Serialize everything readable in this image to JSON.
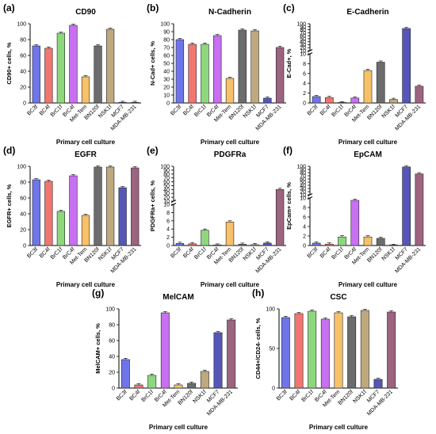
{
  "categories": [
    "BC3f",
    "BC4f",
    "BrC1f",
    "BrC4f",
    "Met-Tem",
    "BN120f",
    "NSK1f",
    "MCF7",
    "MDA-MB-231"
  ],
  "colors": [
    "#5b62e6",
    "#f0635d",
    "#7ed36b",
    "#bf5cf0",
    "#f6b955",
    "#585858",
    "#b59c6c",
    "#3f3fae",
    "#8f4f6e"
  ],
  "chart_data": [
    {
      "type": "bar",
      "panel": "(a)",
      "title": "CD90",
      "ylabel": "CD90+ cells, %",
      "xlabel": "Primary cell culture",
      "ylim": [
        0,
        100
      ],
      "yticks": [
        0,
        20,
        40,
        60,
        80,
        100
      ],
      "categories": [
        "BC3f",
        "BC4f",
        "BrC1f",
        "BrC4f",
        "Met-Tem",
        "BN120f",
        "NSK1f",
        "MCF7",
        "MDA-MB-231"
      ],
      "values": [
        72,
        69,
        88,
        98,
        33,
        72,
        93,
        0.5,
        0.5
      ]
    },
    {
      "type": "bar",
      "panel": "(b)",
      "title": "N-Cadherin",
      "ylabel": "N-Cad+ cells, %",
      "xlabel": "Primary cell culture",
      "ylim": [
        0,
        100
      ],
      "yticks": [
        0,
        10,
        20,
        30,
        40,
        50,
        60,
        70,
        80,
        90,
        100
      ],
      "categories": [
        "BC3f",
        "BC4f",
        "BrC1f",
        "BrC4f",
        "Met-Tem",
        "BN120f",
        "NSK1f",
        "MCF7",
        "MDA-MB-231"
      ],
      "values": [
        80,
        74,
        74,
        85,
        31,
        92,
        91,
        6,
        70
      ]
    },
    {
      "type": "bar",
      "panel": "(c)",
      "title": "E-Cadherin",
      "ylabel": "E-Cad+, %",
      "xlabel": "Primary cell culture",
      "broken_axis": {
        "lower": [
          0,
          10
        ],
        "upper": [
          10,
          100
        ]
      },
      "yticks_lower": [
        0,
        2,
        4,
        6,
        8,
        10
      ],
      "yticks_upper": [
        10,
        20,
        30,
        40,
        50,
        60,
        70,
        80,
        90,
        100
      ],
      "categories": [
        "BC3f",
        "BC4f",
        "BrC1f",
        "BrC4f",
        "Met-Tem",
        "BN120f",
        "NSK1f",
        "MCF7",
        "MDA-MB-231"
      ],
      "values": [
        1.3,
        1.1,
        0,
        1.0,
        6.6,
        8.3,
        0.7,
        84,
        3.4
      ]
    },
    {
      "type": "bar",
      "panel": "(d)",
      "title": "EGFR",
      "ylabel": "EGFR+ cells, %",
      "xlabel": "Primary cell culture",
      "ylim": [
        0,
        100
      ],
      "yticks": [
        0,
        20,
        40,
        60,
        80,
        100
      ],
      "categories": [
        "BC3f",
        "BC4f",
        "BrC1f",
        "BrC4f",
        "Met-Tem",
        "BN120f",
        "NSK1f",
        "MCF7",
        "MDA-MB-231"
      ],
      "values": [
        83,
        81,
        43,
        88,
        38,
        99,
        99,
        73,
        98
      ]
    },
    {
      "type": "bar",
      "panel": "(e)",
      "title": "PDGFRa",
      "ylabel": "PDGFRa+ cells, %",
      "xlabel": "Primary cell culture",
      "broken_axis": {
        "lower": [
          0,
          10
        ],
        "upper": [
          10,
          100
        ]
      },
      "yticks_lower": [
        0,
        2,
        4,
        6,
        8,
        10
      ],
      "yticks_upper": [
        10,
        20,
        30,
        40,
        50,
        60,
        70,
        80,
        90,
        100
      ],
      "categories": [
        "BC3f",
        "BC4f",
        "BrC1f",
        "BrC4f",
        "Met-Tem",
        "BN120f",
        "NSK1f",
        "MCF7",
        "MDA-MB-231"
      ],
      "values": [
        0.5,
        0.4,
        3.7,
        0.1,
        5.7,
        0.3,
        0.2,
        0.6,
        40
      ]
    },
    {
      "type": "bar",
      "panel": "(f)",
      "title": "EpCAM",
      "ylabel": "EpCam+ cells, %",
      "xlabel": "Primary cell culture",
      "broken_axis": {
        "lower": [
          0,
          10
        ],
        "upper": [
          10,
          100
        ]
      },
      "yticks_lower": [
        0,
        2,
        4,
        6,
        8,
        10
      ],
      "yticks_upper": [
        10,
        20,
        30,
        40,
        50,
        60,
        70,
        80,
        90,
        100
      ],
      "categories": [
        "BC3f",
        "BC4f",
        "BrC1f",
        "BrC4f",
        "Met-Tem",
        "BN120f",
        "NSK1f",
        "MCF7",
        "MDA-MB-231"
      ],
      "values": [
        0.5,
        0.3,
        1.8,
        9.5,
        1.8,
        1.5,
        0,
        98,
        76
      ]
    },
    {
      "type": "bar",
      "panel": "(g)",
      "title": "MelCAM",
      "ylabel": "MelCAM+ cells, %",
      "xlabel": "Primary cell culture",
      "ylim": [
        0,
        100
      ],
      "yticks": [
        0,
        20,
        40,
        60,
        80,
        100
      ],
      "categories": [
        "BC3f",
        "BC4f",
        "BrC1f",
        "BrC4f",
        "Met-Tem",
        "BN120f",
        "NSK1f",
        "MCF7",
        "MDA-MB-231"
      ],
      "values": [
        36,
        4,
        16,
        95,
        4,
        6,
        21,
        70,
        86
      ]
    },
    {
      "type": "bar",
      "panel": "(h)",
      "title": "CSC",
      "ylabel": "CD44+/CD24- cells, %",
      "xlabel": "Primary cell culture",
      "ylim": [
        0,
        100
      ],
      "yticks": [
        0,
        50,
        100
      ],
      "categories": [
        "BC3f",
        "BC4f",
        "BrC1f",
        "BrC4f",
        "Met-Tem",
        "BN120f",
        "NSK1f",
        "MCF7",
        "MDA-MB-231"
      ],
      "values": [
        89,
        94,
        97,
        87,
        95,
        90,
        98,
        11,
        96
      ]
    }
  ]
}
